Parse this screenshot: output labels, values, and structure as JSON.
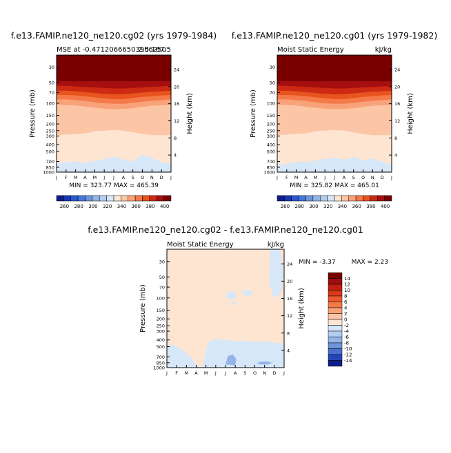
{
  "chart_data": [
    {
      "type": "heatmap",
      "title": "f.e13.FAMIP.ne120_ne120.cg02 (yrs 1979-1984)",
      "subtitle_left": "MSE at -0.47120666503906250",
      "subtitle_right": "2.5,167.5",
      "ylabel": "Pressure (mb)",
      "ylabel_right": "Height (km)",
      "x": [
        "J",
        "F",
        "M",
        "A",
        "M",
        "J",
        "J",
        "A",
        "S",
        "O",
        "N",
        "D",
        "J"
      ],
      "y_ticks": [
        "30",
        "50",
        "70",
        "100",
        "150",
        "200",
        "250",
        "300",
        "400",
        "500",
        "700",
        "850",
        "1000"
      ],
      "y_ticks_right": [
        "24",
        "20",
        "16",
        "12",
        "8",
        "4"
      ],
      "ylim": [
        1000,
        20
      ],
      "y_scale": "log",
      "stats": "MIN = 323.77 MAX = 465.39",
      "colorbar_labels": [
        "260",
        "280",
        "300",
        "320",
        "340",
        "360",
        "380",
        "400"
      ],
      "levels": [
        {
          "min": 400,
          "color": "#7a0000",
          "boundary": [
            48,
            48,
            48,
            48,
            48,
            48,
            48,
            48,
            48,
            48,
            48,
            48,
            48
          ]
        },
        {
          "min": 390,
          "color": "#a50f0f",
          "boundary": [
            56,
            56,
            57,
            58,
            59,
            60,
            61,
            61,
            60,
            59,
            58,
            57,
            56
          ]
        },
        {
          "min": 380,
          "color": "#cc2a12",
          "boundary": [
            66,
            66,
            67,
            69,
            71,
            73,
            74,
            74,
            72,
            70,
            68,
            67,
            66
          ]
        },
        {
          "min": 370,
          "color": "#e8541e",
          "boundary": [
            76,
            76,
            77,
            79,
            82,
            85,
            87,
            87,
            84,
            81,
            79,
            77,
            76
          ]
        },
        {
          "min": 360,
          "color": "#f47a4a",
          "boundary": [
            88,
            88,
            90,
            93,
            97,
            100,
            102,
            102,
            99,
            95,
            92,
            90,
            88
          ]
        },
        {
          "min": 350,
          "color": "#f9a27a",
          "boundary": [
            105,
            106,
            108,
            112,
            116,
            120,
            122,
            121,
            118,
            113,
            109,
            107,
            105
          ]
        },
        {
          "min": 340,
          "color": "#fcc6a6",
          "boundary": [
            290,
            285,
            280,
            275,
            255,
            250,
            245,
            250,
            265,
            280,
            290,
            290,
            290
          ]
        },
        {
          "min": 330,
          "color": "#fee5d2",
          "boundary": [
            750,
            720,
            700,
            740,
            680,
            650,
            600,
            650,
            700,
            560,
            620,
            720,
            750
          ]
        },
        {
          "min": 320,
          "color": "#d6e7f7",
          "boundary": [
            1000,
            1000,
            1000,
            1000,
            1000,
            1000,
            1000,
            1000,
            1000,
            1000,
            1000,
            1000,
            1000
          ]
        }
      ]
    },
    {
      "type": "heatmap",
      "title": "f.e13.FAMIP.ne120_ne120.cg01 (yrs 1979-1982)",
      "subtitle_left": "Moist Static Energy",
      "subtitle_right": "kJ/kg",
      "ylabel": "Pressure (mb)",
      "ylabel_right": "Height (km)",
      "x": [
        "J",
        "F",
        "M",
        "A",
        "M",
        "J",
        "J",
        "A",
        "S",
        "O",
        "N",
        "D",
        "J"
      ],
      "y_ticks": [
        "30",
        "50",
        "70",
        "100",
        "150",
        "200",
        "250",
        "300",
        "400",
        "500",
        "700",
        "850",
        "1000"
      ],
      "y_ticks_right": [
        "24",
        "20",
        "16",
        "12",
        "8",
        "4"
      ],
      "ylim": [
        1000,
        20
      ],
      "y_scale": "log",
      "stats": "MIN = 325.82 MAX = 465.01",
      "colorbar_labels": [
        "260",
        "280",
        "300",
        "320",
        "340",
        "360",
        "380",
        "400"
      ],
      "levels": [
        {
          "min": 400,
          "color": "#7a0000",
          "boundary": [
            48,
            48,
            48,
            48,
            48,
            48,
            48,
            48,
            48,
            48,
            48,
            48,
            48
          ]
        },
        {
          "min": 390,
          "color": "#a50f0f",
          "boundary": [
            56,
            56,
            57,
            58,
            59,
            60,
            61,
            61,
            60,
            59,
            58,
            57,
            56
          ]
        },
        {
          "min": 380,
          "color": "#cc2a12",
          "boundary": [
            66,
            66,
            67,
            69,
            71,
            73,
            74,
            74,
            72,
            70,
            68,
            67,
            66
          ]
        },
        {
          "min": 370,
          "color": "#e8541e",
          "boundary": [
            76,
            76,
            77,
            79,
            82,
            85,
            87,
            87,
            84,
            81,
            79,
            77,
            76
          ]
        },
        {
          "min": 360,
          "color": "#f47a4a",
          "boundary": [
            88,
            88,
            90,
            93,
            97,
            100,
            102,
            102,
            99,
            95,
            92,
            90,
            88
          ]
        },
        {
          "min": 350,
          "color": "#f9a27a",
          "boundary": [
            105,
            106,
            108,
            112,
            116,
            120,
            122,
            121,
            118,
            113,
            109,
            107,
            105
          ]
        },
        {
          "min": 340,
          "color": "#fcc6a6",
          "boundary": [
            290,
            285,
            280,
            275,
            255,
            250,
            245,
            250,
            265,
            280,
            290,
            290,
            290
          ]
        },
        {
          "min": 330,
          "color": "#fee5d2",
          "boundary": [
            780,
            760,
            700,
            720,
            680,
            640,
            620,
            660,
            600,
            680,
            640,
            700,
            780
          ]
        },
        {
          "min": 320,
          "color": "#d6e7f7",
          "boundary": [
            1000,
            1000,
            1000,
            1000,
            1000,
            1000,
            1000,
            1000,
            1000,
            1000,
            1000,
            1000,
            1000
          ]
        }
      ]
    },
    {
      "type": "heatmap",
      "title": "f.e13.FAMIP.ne120_ne120.cg02 - f.e13.FAMIP.ne120_ne120.cg01",
      "subtitle_left": "Moist Static Energy",
      "subtitle_right": "kJ/kg",
      "ylabel": "Pressure (mb)",
      "ylabel_right": "Height (km)",
      "x": [
        "J",
        "F",
        "M",
        "A",
        "M",
        "J",
        "J",
        "A",
        "S",
        "O",
        "N",
        "D",
        "J"
      ],
      "y_ticks": [
        "30",
        "50",
        "70",
        "100",
        "150",
        "200",
        "250",
        "300",
        "400",
        "500",
        "700",
        "850",
        "1000"
      ],
      "y_ticks_right": [
        "24",
        "20",
        "16",
        "12",
        "8",
        "4"
      ],
      "ylim": [
        1000,
        20
      ],
      "y_scale": "log",
      "stats_left": "MIN =   -3.37",
      "stats_right": "MAX =    2.23",
      "background_color": "#fee5d2",
      "regions": [
        {
          "label": "negative (0 to -2)",
          "color": "#d6e7f7",
          "points": [
            [
              0,
              1000
            ],
            [
              0,
              500
            ],
            [
              0.6,
              460
            ],
            [
              1.6,
              560
            ],
            [
              2.4,
              700
            ],
            [
              3.3,
              1000
            ]
          ]
        },
        {
          "label": "negative (0 to -2)",
          "color": "#d6e7f7",
          "points": [
            [
              3.6,
              1000
            ],
            [
              4.2,
              430
            ],
            [
              5.0,
              390
            ],
            [
              6.0,
              400
            ],
            [
              7.0,
              420
            ],
            [
              8.0,
              410
            ],
            [
              9.0,
              430
            ],
            [
              10.0,
              420
            ],
            [
              11.0,
              440
            ],
            [
              12,
              450
            ],
            [
              12,
              1000
            ]
          ]
        },
        {
          "label": "negative (-2 to -4)",
          "color": "#93b4e6",
          "points": [
            [
              6.0,
              900
            ],
            [
              6.25,
              680
            ],
            [
              6.75,
              650
            ],
            [
              7.1,
              750
            ],
            [
              7.0,
              920
            ]
          ]
        },
        {
          "label": "negative (-2 to -4)",
          "color": "#93b4e6",
          "points": [
            [
              9.2,
              860
            ],
            [
              9.6,
              820
            ],
            [
              10.4,
              820
            ],
            [
              10.8,
              860
            ],
            [
              10.3,
              900
            ],
            [
              9.6,
              900
            ]
          ]
        },
        {
          "label": "negative (0 to -2)",
          "color": "#d6e7f7",
          "points": [
            [
              6.0,
              95
            ],
            [
              6.3,
              80
            ],
            [
              6.9,
              80
            ],
            [
              7.1,
              95
            ],
            [
              6.8,
              105
            ],
            [
              6.3,
              105
            ]
          ]
        },
        {
          "label": "negative (0 to -2)",
          "color": "#d6e7f7",
          "points": [
            [
              7.6,
              85
            ],
            [
              8.0,
              78
            ],
            [
              8.6,
              78
            ],
            [
              8.8,
              88
            ],
            [
              8.2,
              95
            ]
          ]
        },
        {
          "label": "negative (0 to -2)",
          "color": "#d6e7f7",
          "points": [
            [
              6.6,
              120
            ],
            [
              6.9,
              110
            ],
            [
              7.2,
              120
            ],
            [
              6.9,
              130
            ]
          ]
        },
        {
          "label": "negative (0 to -2)",
          "color": "#d6e7f7",
          "points": [
            [
              10.6,
              20
            ],
            [
              11.6,
              20
            ],
            [
              11.9,
              40
            ],
            [
              11.8,
              75
            ],
            [
              11.3,
              100
            ],
            [
              10.8,
              90
            ],
            [
              10.5,
              60
            ]
          ]
        }
      ],
      "colorbar_labels": [
        "14",
        "12",
        "10",
        "8",
        "6",
        "4",
        "2",
        "0",
        "-2",
        "-4",
        "-6",
        "-8",
        "-10",
        "-12",
        "-14"
      ],
      "colorbar_colors": [
        "#7a0000",
        "#9e0e0e",
        "#c21f12",
        "#db3a1a",
        "#ee5a30",
        "#f47a4a",
        "#f9a27a",
        "#fcc6a6",
        "#fee5d2",
        "#d6e7f7",
        "#b3cdf0",
        "#93b4e6",
        "#6f94da",
        "#4a6fd0",
        "#2646b8",
        "#0d1e8c"
      ]
    }
  ],
  "left_colorbar_colors": [
    "#0d1e8c",
    "#1a36b0",
    "#2a58d0",
    "#4677dc",
    "#6f94da",
    "#93b4e6",
    "#b3cdf0",
    "#d6e7f7",
    "#fee5d2",
    "#fcc6a6",
    "#f9a27a",
    "#f47a4a",
    "#e8541e",
    "#cc2a12",
    "#a50f0f",
    "#7a0000"
  ]
}
